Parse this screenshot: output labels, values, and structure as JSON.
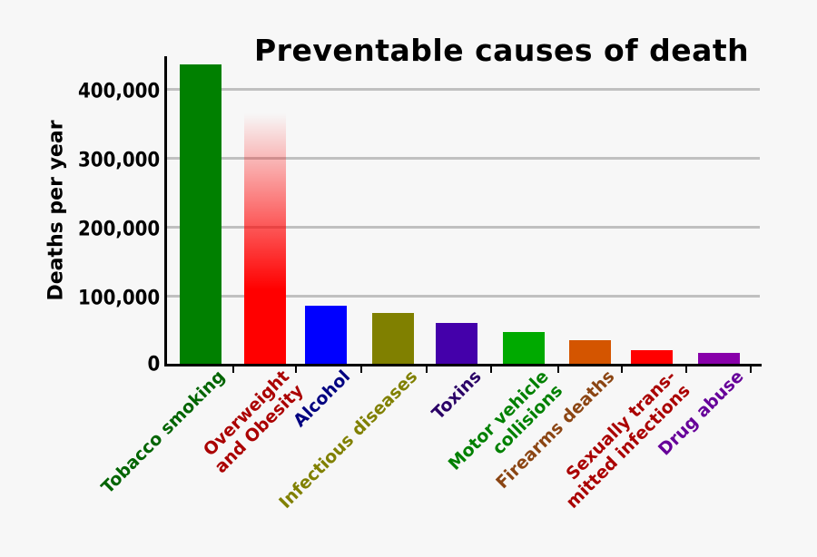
{
  "chart_data": {
    "type": "bar",
    "title": "Preventable causes of death",
    "xlabel": "",
    "ylabel": "Deaths per year",
    "ylim": [
      0,
      450000
    ],
    "yticks": [
      "0",
      "100,000",
      "200,000",
      "300,000",
      "400,000"
    ],
    "grid": true,
    "categories": [
      "Tobacco smoking",
      "Overweight and Obesity",
      "Alcohol",
      "Infectious diseases",
      "Toxins",
      "Motor vehicle collisions",
      "Firearms deaths",
      "Sexually transmitted infections",
      "Drug abuse"
    ],
    "values": [
      435000,
      365000,
      85000,
      75000,
      60000,
      48000,
      36000,
      21000,
      17000
    ],
    "bar_colors": [
      "#008000",
      "#ff0000",
      "#0000ff",
      "#808000",
      "#4400aa",
      "#00aa00",
      "#d45500",
      "#ff0000",
      "#8800aa"
    ],
    "label_colors": [
      "#006400",
      "#aa0000",
      "#000080",
      "#808000",
      "#2a0066",
      "#008000",
      "#8b4513",
      "#aa0000",
      "#660099"
    ],
    "notes": "Overweight and Obesity bar drawn with a gradient fading out toward the top, indicating uncertainty"
  },
  "labels": {
    "title": "Preventable causes of death",
    "ylabel": "Deaths per year",
    "yticks": [
      "0",
      "100,000",
      "200,000",
      "300,000",
      "400,000"
    ],
    "x": [
      [
        "Tobacco smoking"
      ],
      [
        "Overweight",
        "and Obesity"
      ],
      [
        "Alcohol"
      ],
      [
        "Infectious diseases"
      ],
      [
        "Toxins"
      ],
      [
        "Motor vehicle",
        "collisions"
      ],
      [
        "Firearms deaths"
      ],
      [
        "Sexually trans-",
        "mitted infections"
      ],
      [
        "Drug abuse"
      ]
    ]
  }
}
